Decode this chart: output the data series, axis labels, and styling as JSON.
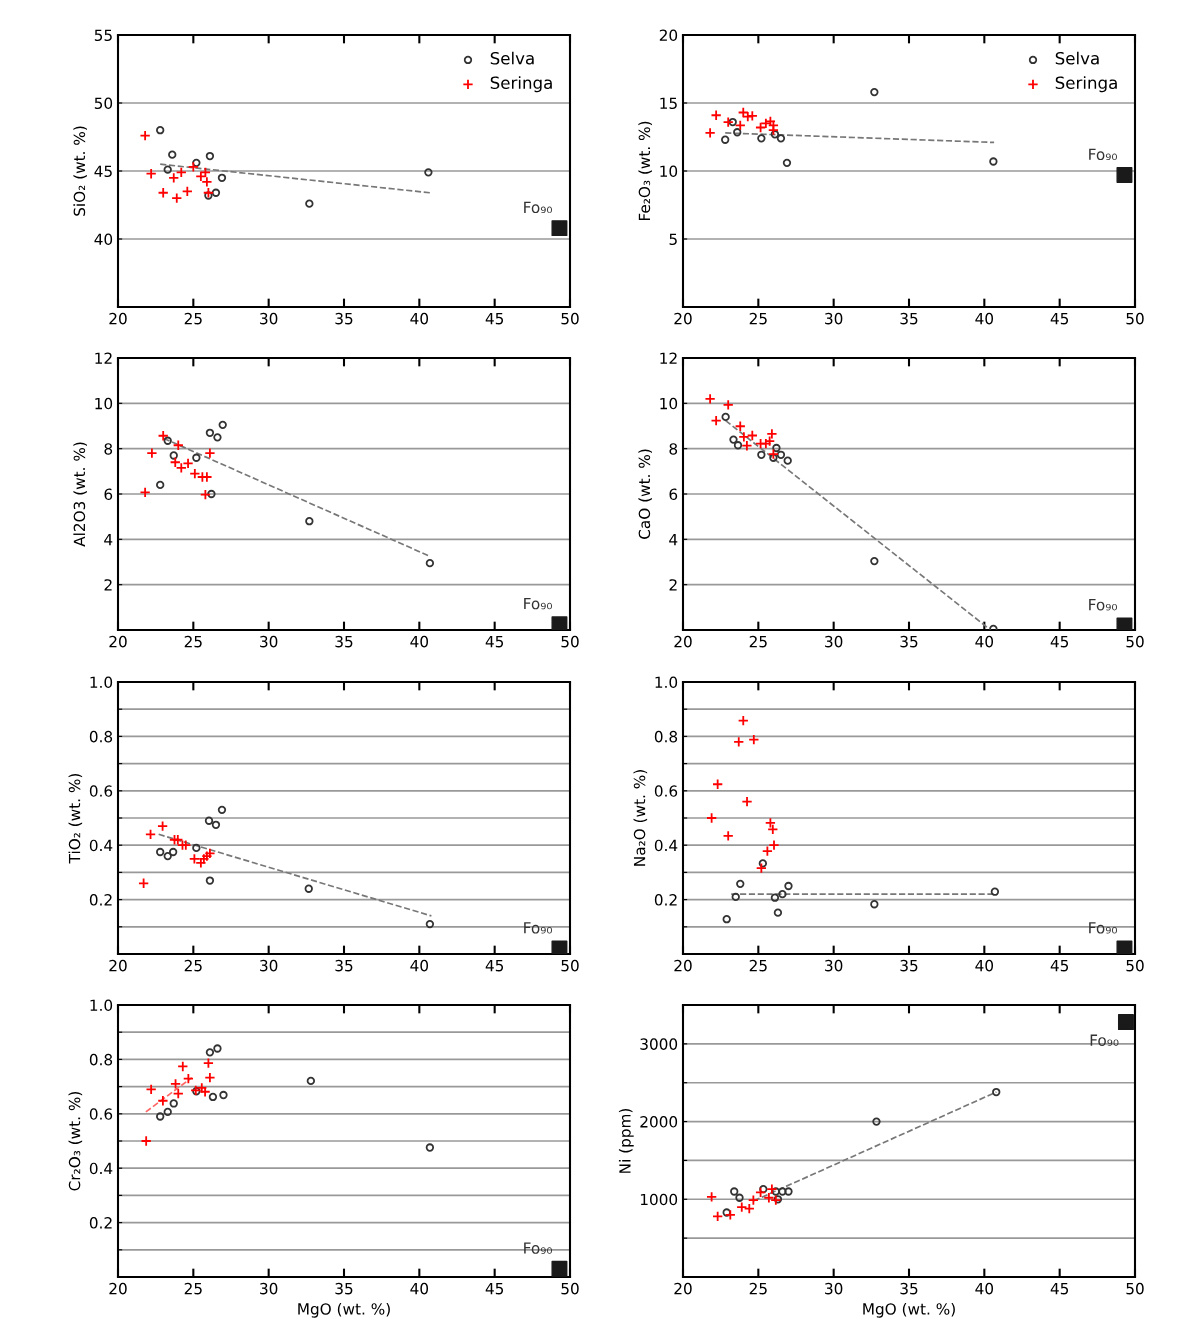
{
  "chart_data": [
    {
      "type": "scatter",
      "ylabel": "SiO₂ (wt. %)",
      "xlim": [
        20,
        50
      ],
      "xticks": [
        20,
        25,
        30,
        35,
        40,
        45,
        50
      ],
      "ylim": [
        35,
        55
      ],
      "yticks": [
        40,
        45,
        50,
        55
      ],
      "grid": "y",
      "legend": "top right",
      "annotations": [
        "Fo₉₀"
      ],
      "series": [
        {
          "name": "Selva",
          "marker": "circle",
          "color": "#333333",
          "x": [
            22.8,
            23.6,
            23.3,
            25.2,
            26.1,
            26.9,
            26.0,
            26.5,
            32.7,
            40.6
          ],
          "values": [
            48.0,
            46.2,
            45.1,
            45.6,
            46.1,
            44.5,
            43.2,
            43.4,
            42.6,
            44.9
          ]
        },
        {
          "name": "Seringa",
          "marker": "cross",
          "color": "#ff0000",
          "x": [
            21.8,
            22.2,
            23.0,
            23.7,
            24.2,
            23.9,
            24.6,
            25.0,
            25.5,
            25.8,
            25.9,
            26.0
          ],
          "values": [
            47.6,
            44.8,
            43.4,
            44.5,
            44.9,
            43.0,
            43.5,
            45.3,
            44.6,
            44.9,
            44.2,
            43.4
          ]
        },
        {
          "type": "line",
          "line_style": "dashed",
          "color": "#777777",
          "x": [
            22.8,
            40.7
          ],
          "values": [
            45.5,
            43.4
          ]
        },
        {
          "marker": "square",
          "color": "#1a1a1a",
          "x": [
            49.3
          ],
          "values": [
            40.8
          ]
        }
      ]
    },
    {
      "type": "scatter",
      "ylabel": "Fe₂O₃ (wt. %)",
      "xlim": [
        20,
        50
      ],
      "xticks": [
        20,
        25,
        30,
        35,
        40,
        45,
        50
      ],
      "ylim": [
        0,
        20
      ],
      "yticks": [
        5,
        10,
        15,
        20
      ],
      "grid": "y",
      "legend": "top right",
      "annotations": [
        "Fo₉₀"
      ],
      "series": [
        {
          "name": "Selva",
          "marker": "circle",
          "color": "#333333",
          "x": [
            32.7,
            22.8,
            23.3,
            23.6,
            25.2,
            26.1,
            26.5,
            26.9,
            40.6
          ],
          "values": [
            15.8,
            12.3,
            13.6,
            12.85,
            12.4,
            12.7,
            12.4,
            10.6,
            10.7
          ]
        },
        {
          "name": "Seringa",
          "marker": "cross",
          "color": "#ff0000",
          "x": [
            21.8,
            22.2,
            23.0,
            23.8,
            24.0,
            24.3,
            24.6,
            25.15,
            25.5,
            25.8,
            26.0,
            26.0
          ],
          "values": [
            12.8,
            14.1,
            13.6,
            13.35,
            14.3,
            14.0,
            14.05,
            13.2,
            13.5,
            13.65,
            13.35,
            13.0
          ]
        },
        {
          "type": "line",
          "line_style": "dashed",
          "color": "#777777",
          "x": [
            22.8,
            40.65
          ],
          "values": [
            12.8,
            12.1
          ]
        },
        {
          "marker": "square",
          "color": "#1a1a1a",
          "x": [
            49.3
          ],
          "values": [
            9.7
          ]
        }
      ]
    },
    {
      "type": "scatter",
      "ylabel": "Al2O3 (wt. %)",
      "xlim": [
        20,
        50
      ],
      "xticks": [
        20,
        25,
        30,
        35,
        40,
        45,
        50
      ],
      "ylim": [
        0,
        12
      ],
      "yticks": [
        2,
        4,
        6,
        8,
        10,
        12
      ],
      "grid": "y",
      "annotations": [
        "Fo₉₀"
      ],
      "series": [
        {
          "marker": "circle",
          "color": "#333333",
          "x": [
            23.3,
            23.7,
            22.8,
            25.2,
            26.1,
            26.6,
            26.95,
            26.2,
            32.7,
            40.7
          ],
          "values": [
            8.35,
            7.7,
            6.4,
            7.6,
            8.7,
            8.5,
            9.05,
            6.0,
            4.8,
            2.95
          ]
        },
        {
          "marker": "cross",
          "color": "#ff0000",
          "x": [
            21.8,
            22.25,
            23.0,
            24.0,
            23.8,
            24.2,
            24.65,
            25.1,
            25.6,
            25.9,
            25.8,
            26.1
          ],
          "values": [
            6.07,
            7.8,
            8.57,
            8.15,
            7.4,
            7.15,
            7.35,
            6.9,
            6.75,
            6.75,
            5.97,
            7.8
          ]
        },
        {
          "type": "line",
          "line_style": "dashed",
          "color": "#777777",
          "x": [
            23.05,
            40.7
          ],
          "values": [
            8.45,
            3.25
          ]
        },
        {
          "marker": "square",
          "color": "#1a1a1a",
          "x": [
            49.3
          ],
          "values": [
            0.25
          ]
        }
      ]
    },
    {
      "type": "scatter",
      "ylabel": "CaO (wt. %)",
      "xlim": [
        20,
        50
      ],
      "xticks": [
        20,
        25,
        30,
        35,
        40,
        45,
        50
      ],
      "ylim": [
        0,
        12
      ],
      "yticks": [
        2,
        4,
        6,
        8,
        10,
        12
      ],
      "grid": "y",
      "annotations": [
        "Fo₉₀"
      ],
      "series": [
        {
          "marker": "circle",
          "color": "#333333",
          "x": [
            22.83,
            23.35,
            23.65,
            25.2,
            26.2,
            26.0,
            26.5,
            26.95,
            32.7,
            40.6
          ],
          "values": [
            9.4,
            8.4,
            8.15,
            7.73,
            8.03,
            7.6,
            7.73,
            7.47,
            3.04,
            0.05
          ]
        },
        {
          "marker": "cross",
          "color": "#ff0000",
          "x": [
            21.8,
            23.0,
            22.2,
            23.8,
            24.04,
            24.6,
            24.24,
            25.15,
            25.5,
            25.75,
            25.9,
            26.0
          ],
          "values": [
            10.2,
            9.93,
            9.24,
            8.99,
            8.52,
            8.58,
            8.13,
            8.22,
            8.22,
            8.33,
            8.65,
            7.76
          ]
        },
        {
          "type": "line",
          "line_style": "dashed",
          "color": "#777777",
          "x": [
            22.83,
            40.3
          ],
          "values": [
            9.24,
            0.06
          ]
        },
        {
          "marker": "square",
          "color": "#1a1a1a",
          "x": [
            49.3
          ],
          "values": [
            0.2
          ]
        }
      ]
    },
    {
      "type": "scatter",
      "ylabel": "TiO₂ (wt. %)",
      "xlim": [
        20,
        50
      ],
      "xticks": [
        20,
        25,
        30,
        35,
        40,
        45,
        50
      ],
      "ylim": [
        0,
        1.0
      ],
      "yticks": [
        {
          "value": 0.1,
          "label": null
        },
        0.2,
        {
          "value": 0.3,
          "label": null
        },
        0.4,
        {
          "value": 0.5,
          "label": null
        },
        0.6,
        {
          "value": 0.7,
          "label": null
        },
        0.8,
        {
          "value": 0.9,
          "label": null
        },
        {
          "value": 1.0,
          "label": "1.0"
        }
      ],
      "grid": "y",
      "annotations": [
        "Fo₉₀"
      ],
      "series": [
        {
          "marker": "circle",
          "color": "#333333",
          "x": [
            22.8,
            23.3,
            23.66,
            25.2,
            26.04,
            26.5,
            26.9,
            26.1,
            32.66,
            40.7
          ],
          "values": [
            0.375,
            0.36,
            0.375,
            0.39,
            0.49,
            0.475,
            0.53,
            0.27,
            0.24,
            0.11
          ]
        },
        {
          "marker": "cross",
          "color": "#ff0000",
          "x": [
            21.7,
            22.16,
            22.96,
            23.75,
            23.97,
            24.28,
            24.5,
            25.07,
            25.5,
            25.7,
            25.9,
            26.1
          ],
          "values": [
            0.26,
            0.44,
            0.47,
            0.42,
            0.42,
            0.4,
            0.4,
            0.35,
            0.335,
            0.35,
            0.36,
            0.37
          ]
        },
        {
          "type": "line",
          "line_style": "dashed",
          "color": "#777777",
          "x": [
            22.7,
            40.8
          ],
          "values": [
            0.44,
            0.14
          ]
        },
        {
          "marker": "square",
          "color": "#1a1a1a",
          "x": [
            49.3
          ],
          "values": [
            0.02
          ]
        }
      ]
    },
    {
      "type": "scatter",
      "ylabel": "Na₂O (wt. %)",
      "xlim": [
        20,
        50
      ],
      "xticks": [
        20,
        25,
        30,
        35,
        40,
        45,
        50
      ],
      "ylim": [
        0,
        1.0
      ],
      "yticks": [
        {
          "value": 0.1,
          "label": null
        },
        0.2,
        {
          "value": 0.3,
          "label": null
        },
        0.4,
        {
          "value": 0.5,
          "label": null
        },
        0.6,
        {
          "value": 0.7,
          "label": null
        },
        0.8,
        {
          "value": 0.9,
          "label": null
        },
        {
          "value": 1.0,
          "label": "1.0"
        }
      ],
      "grid": "y",
      "annotations": [
        "Fo₉₀"
      ],
      "series": [
        {
          "marker": "circle",
          "color": "#333333",
          "x": [
            22.9,
            23.5,
            23.8,
            25.3,
            26.1,
            26.3,
            26.6,
            27.0,
            32.7,
            40.7
          ],
          "values": [
            0.128,
            0.21,
            0.258,
            0.333,
            0.207,
            0.152,
            0.22,
            0.25,
            0.183,
            0.229
          ]
        },
        {
          "marker": "cross",
          "color": "#ff0000",
          "x": [
            21.9,
            22.3,
            23.0,
            23.7,
            24.0,
            24.25,
            24.7,
            25.2,
            25.6,
            25.8,
            25.96,
            26.04
          ],
          "values": [
            0.5,
            0.624,
            0.434,
            0.78,
            0.858,
            0.56,
            0.788,
            0.316,
            0.378,
            0.482,
            0.458,
            0.4
          ]
        },
        {
          "type": "line",
          "line_style": "dashed",
          "color": "#777777",
          "x": [
            23.2,
            40.7
          ],
          "values": [
            0.22,
            0.22
          ]
        },
        {
          "marker": "square",
          "color": "#1a1a1a",
          "x": [
            49.3
          ],
          "values": [
            0.02
          ]
        }
      ]
    },
    {
      "type": "scatter",
      "xlabel": "MgO (wt. %)",
      "ylabel": "Cr₂O₃ (wt. %)",
      "xlim": [
        20,
        50
      ],
      "xticks": [
        20,
        25,
        30,
        35,
        40,
        45,
        50
      ],
      "ylim": [
        0,
        1.0
      ],
      "yticks": [
        {
          "value": 0.1,
          "label": null
        },
        0.2,
        {
          "value": 0.3,
          "label": null
        },
        0.4,
        {
          "value": 0.5,
          "label": null
        },
        0.6,
        {
          "value": 0.7,
          "label": null
        },
        0.8,
        {
          "value": 0.9,
          "label": null
        },
        {
          "value": 1.0,
          "label": "1.0"
        }
      ],
      "grid": "y",
      "annotations": [
        "Fo₉₀"
      ],
      "series": [
        {
          "marker": "circle",
          "color": "#333333",
          "x": [
            22.8,
            23.3,
            23.7,
            25.2,
            26.1,
            26.6,
            26.3,
            27.0,
            32.8,
            40.7
          ],
          "values": [
            0.59,
            0.607,
            0.638,
            0.683,
            0.826,
            0.84,
            0.662,
            0.669,
            0.721,
            0.476
          ]
        },
        {
          "marker": "cross",
          "color": "#ff0000",
          "x": [
            21.87,
            22.2,
            22.98,
            23.82,
            24.0,
            24.3,
            24.67,
            25.16,
            25.56,
            25.78,
            26.0,
            26.1
          ],
          "values": [
            0.5,
            0.69,
            0.648,
            0.71,
            0.674,
            0.774,
            0.729,
            0.686,
            0.695,
            0.681,
            0.786,
            0.733
          ]
        },
        {
          "type": "line",
          "line_style": "dashed",
          "color": "#ff6666",
          "x": [
            21.85,
            24.9
          ],
          "values": [
            0.607,
            0.733
          ]
        },
        {
          "marker": "square",
          "color": "#1a1a1a",
          "x": [
            49.3
          ],
          "values": [
            0.03
          ]
        }
      ]
    },
    {
      "type": "scatter",
      "xlabel": "MgO (wt. %)",
      "ylabel": "Ni (ppm)",
      "xlim": [
        20,
        50
      ],
      "xticks": [
        20,
        25,
        30,
        35,
        40,
        45,
        50
      ],
      "ylim": [
        0,
        3500
      ],
      "yticks": [
        {
          "value": 500,
          "label": null
        },
        1000,
        {
          "value": 1500,
          "label": null
        },
        2000,
        {
          "value": 2500,
          "label": null
        },
        3000
      ],
      "grid": "y",
      "annotations": [
        "Fo₉₀"
      ],
      "series": [
        {
          "marker": "circle",
          "color": "#333333",
          "x": [
            23.4,
            23.75,
            22.9,
            25.33,
            26.16,
            26.3,
            26.6,
            27.0,
            32.84,
            40.79
          ],
          "values": [
            1100,
            1020,
            830,
            1130,
            1100,
            1000,
            1100,
            1100,
            2000,
            2380
          ]
        },
        {
          "marker": "cross",
          "color": "#ff0000",
          "x": [
            21.9,
            22.3,
            23.14,
            23.9,
            24.4,
            24.67,
            25.15,
            25.7,
            25.9,
            26.16
          ],
          "values": [
            1030,
            780,
            800,
            900,
            880,
            990,
            1090,
            1020,
            1130,
            990
          ]
        },
        {
          "type": "line",
          "line_style": "dashed",
          "color": "#777777",
          "x": [
            24.7,
            40.8
          ],
          "values": [
            980,
            2380
          ]
        },
        {
          "marker": "square",
          "color": "#1a1a1a",
          "x": [
            49.4
          ],
          "values": [
            3280
          ]
        }
      ]
    }
  ]
}
